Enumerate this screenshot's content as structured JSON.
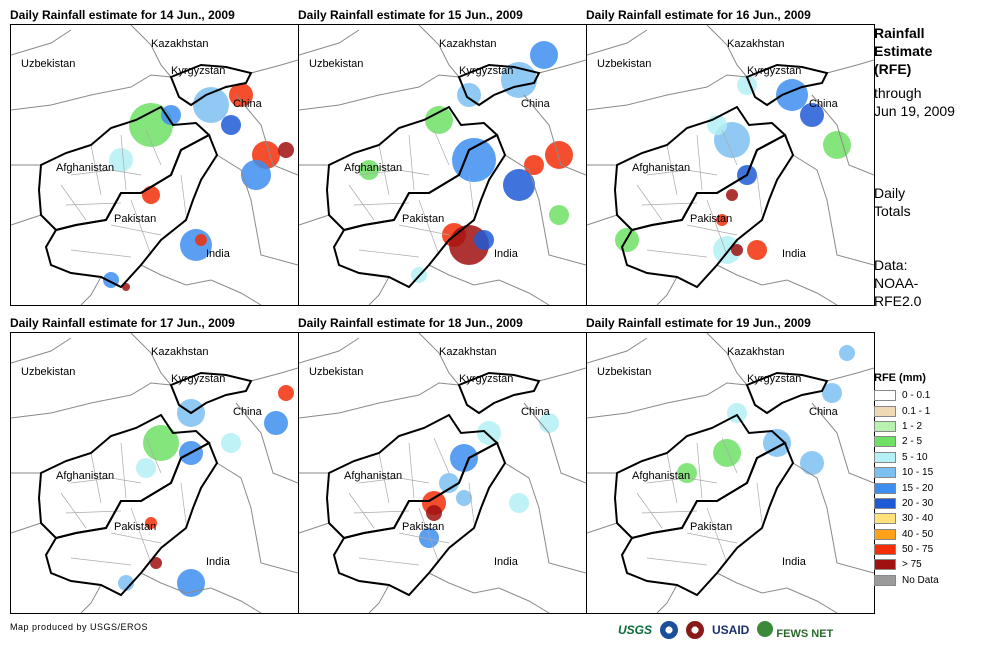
{
  "panels": [
    {
      "title": "Daily Rainfall estimate for 14 Jun., 2009"
    },
    {
      "title": "Daily Rainfall estimate for 15 Jun., 2009"
    },
    {
      "title": "Daily Rainfall estimate for 16 Jun., 2009"
    },
    {
      "title": "Daily Rainfall estimate for 17 Jun., 2009"
    },
    {
      "title": "Daily Rainfall estimate for 18 Jun., 2009"
    },
    {
      "title": "Daily Rainfall estimate for 19 Jun., 2009"
    }
  ],
  "country_labels": {
    "kazakhstan": "Kazakhstan",
    "uzbekistan": "Uzbekistan",
    "kyrgyzstan": "Kyrgyzstan",
    "china": "China",
    "afghanistan": "Afghanistan",
    "pakistan": "Pakistan",
    "india": "India"
  },
  "side": {
    "line1": "Rainfall",
    "line2": "Estimate",
    "line3": "(RFE)",
    "line4": "through",
    "line5": "Jun 19, 2009",
    "line6": "Daily",
    "line7": "Totals",
    "line8": "Data:",
    "line9": "NOAA-",
    "line10": "RFE2.0"
  },
  "legend": {
    "title": "RFE (mm)",
    "items": [
      {
        "label": "0 - 0.1",
        "color": "#ffffff"
      },
      {
        "label": "0.1 - 1",
        "color": "#efd9b4"
      },
      {
        "label": "1 - 2",
        "color": "#b9f2b0"
      },
      {
        "label": "2 - 5",
        "color": "#6ee066"
      },
      {
        "label": "5 - 10",
        "color": "#b4f0f5"
      },
      {
        "label": "10 - 15",
        "color": "#7cc0f2"
      },
      {
        "label": "15 - 20",
        "color": "#3d8ef0"
      },
      {
        "label": "20 - 30",
        "color": "#1f5ad6"
      },
      {
        "label": "30 - 40",
        "color": "#ffe27a"
      },
      {
        "label": "40 - 50",
        "color": "#ffa21a"
      },
      {
        "label": "50 - 75",
        "color": "#f22f0a"
      },
      {
        "label": "> 75",
        "color": "#a01010"
      },
      {
        "label": "No Data",
        "color": "#9a9a9a"
      }
    ]
  },
  "footer": {
    "credit": "Map produced by USGS/EROS",
    "logos": {
      "usgs": "USGS",
      "usaid": "USAID",
      "fews": "FEWS NET"
    }
  }
}
